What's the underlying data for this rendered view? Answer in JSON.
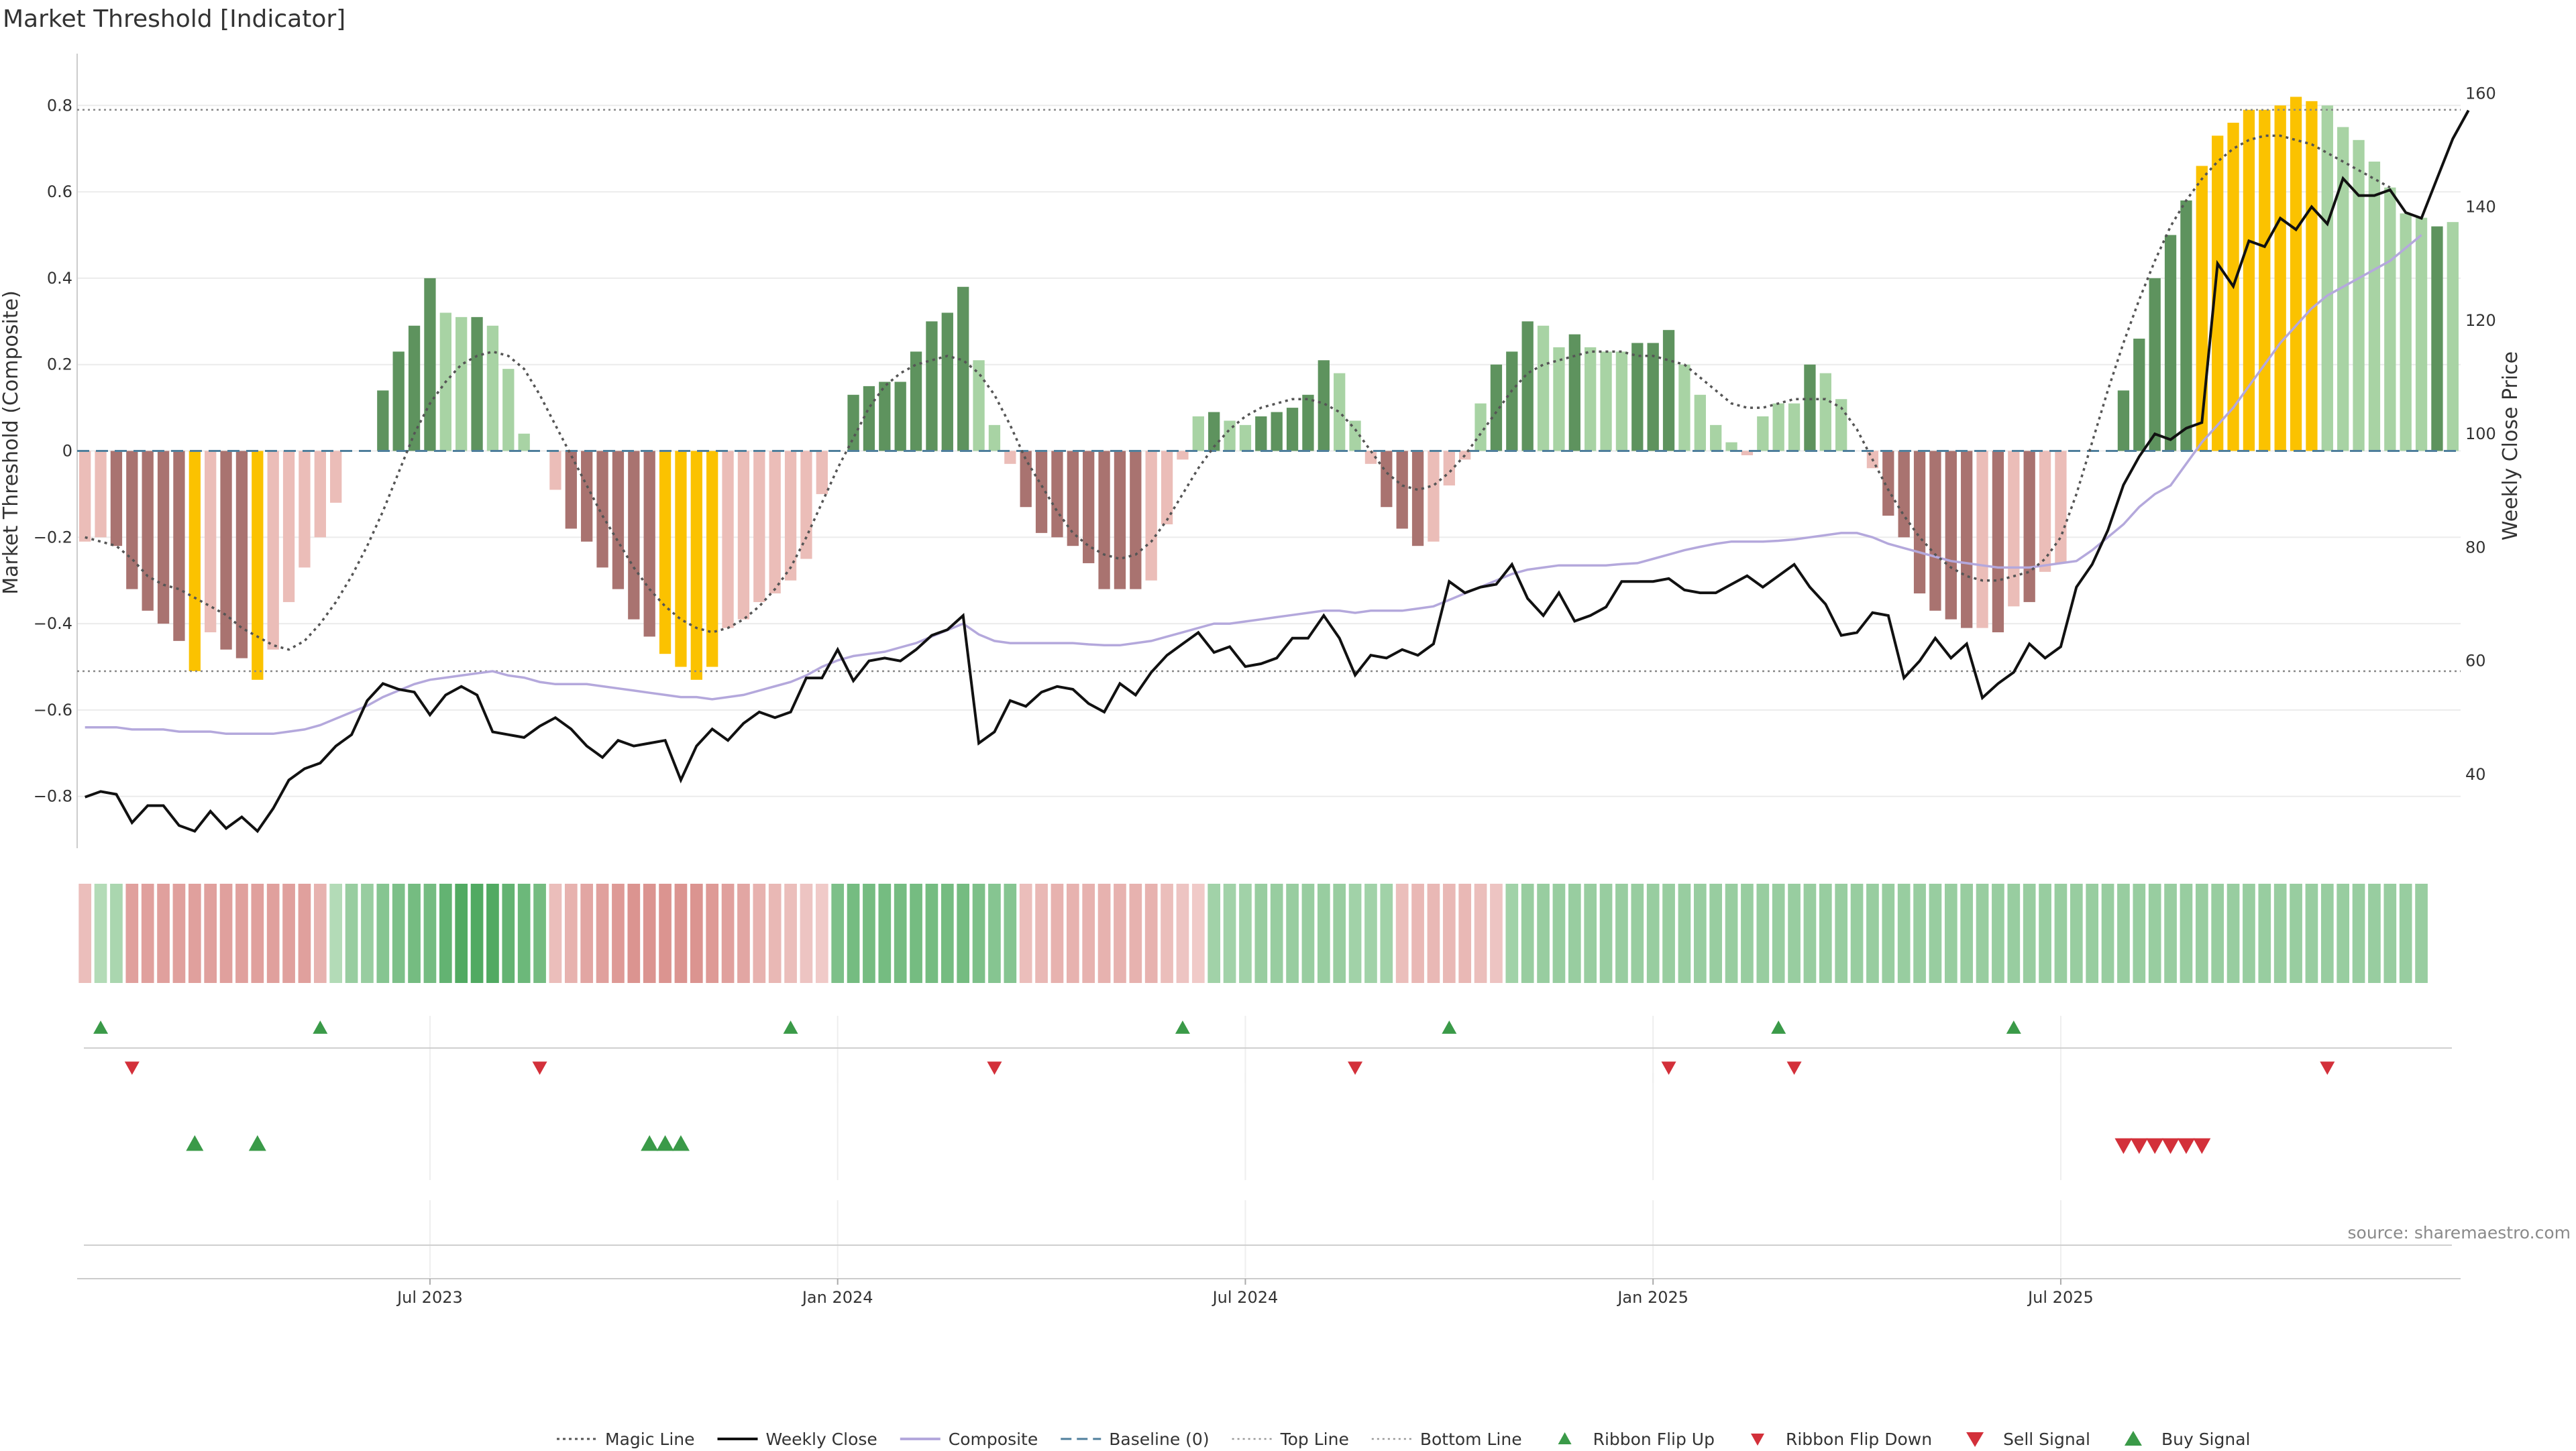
{
  "chart_data": {
    "type": "bar",
    "title": "Market Threshold [Indicator]",
    "ylabel": "Market Threshold (Composite)",
    "y2label": "Weekly Close Price",
    "source": "source: sharemaestro.com",
    "ylim": [
      -0.92,
      0.92
    ],
    "y2lim": [
      27,
      167
    ],
    "yticks": [
      -0.8,
      -0.6,
      -0.4,
      -0.2,
      0,
      0.2,
      0.4,
      0.6,
      0.8
    ],
    "ytick_labels": [
      "−0.8",
      "−0.6",
      "−0.4",
      "−0.2",
      "0",
      "0.2",
      "0.4",
      "0.6",
      "0.8"
    ],
    "y2ticks": [
      40,
      60,
      80,
      100,
      120,
      140,
      160
    ],
    "y2tick_labels": [
      "40",
      "60",
      "80",
      "100",
      "120",
      "140",
      "160"
    ],
    "xtick_labels": [
      "Jul 2023",
      "Jan 2024",
      "Jul 2024",
      "Jan 2025",
      "Jul 2025"
    ],
    "xtick_positions": [
      22.5,
      48.5,
      74.5,
      100.5,
      126.5
    ],
    "top_line": 0.79,
    "bottom_line": -0.51,
    "colors": {
      "strong_up": "#5e935e",
      "weak_up": "#a8d3a4",
      "strong_down": "#a97370",
      "weak_down": "#ebbdb8",
      "extreme": "#fbc200",
      "price_line": "#111111",
      "composite_line": "#b4a8dc",
      "magic_line": "#555555",
      "baseline": "#4f7f9c",
      "buy": "#3a9a48",
      "sell": "#d3303a"
    },
    "bars": [
      -0.21,
      -0.2,
      -0.22,
      -0.32,
      -0.37,
      -0.4,
      -0.44,
      -0.51,
      -0.42,
      -0.46,
      -0.48,
      -0.53,
      -0.46,
      -0.35,
      -0.27,
      -0.2,
      -0.12,
      0,
      0,
      0.14,
      0.23,
      0.29,
      0.4,
      0.32,
      0.31,
      0.31,
      0.29,
      0.19,
      0.04,
      0,
      -0.09,
      -0.18,
      -0.21,
      -0.27,
      -0.32,
      -0.39,
      -0.43,
      -0.47,
      -0.5,
      -0.53,
      -0.5,
      -0.41,
      -0.39,
      -0.35,
      -0.33,
      -0.3,
      -0.25,
      -0.1,
      0,
      0.13,
      0.15,
      0.16,
      0.16,
      0.23,
      0.3,
      0.32,
      0.38,
      0.21,
      0.06,
      -0.03,
      -0.13,
      -0.19,
      -0.2,
      -0.22,
      -0.26,
      -0.32,
      -0.32,
      -0.32,
      -0.3,
      -0.17,
      -0.02,
      0.08,
      0.09,
      0.07,
      0.06,
      0.08,
      0.09,
      0.1,
      0.13,
      0.21,
      0.18,
      0.07,
      -0.03,
      -0.13,
      -0.18,
      -0.22,
      -0.21,
      -0.08,
      -0.02,
      0.11,
      0.2,
      0.23,
      0.3,
      0.29,
      0.24,
      0.27,
      0.24,
      0.23,
      0.23,
      0.25,
      0.25,
      0.28,
      0.2,
      0.13,
      0.06,
      0.02,
      -0.01,
      0.08,
      0.11,
      0.11,
      0.2,
      0.18,
      0.12,
      0,
      -0.04,
      -0.15,
      -0.2,
      -0.33,
      -0.37,
      -0.39,
      -0.41,
      -0.41,
      -0.42,
      -0.36,
      -0.35,
      -0.28,
      -0.26,
      -0.26,
      -0.15,
      0,
      0.14,
      0.26,
      0.4,
      0.5,
      0.58,
      0.66,
      0.73,
      0.76,
      0.79,
      0.79,
      0.8,
      0.82,
      0.81,
      0.8,
      0.75,
      0.72,
      0.67,
      0.61,
      0.55,
      0.54,
      0.52,
      0.53
    ],
    "bar_tiers": [
      "w",
      "w",
      "s",
      "s",
      "s",
      "s",
      "s",
      "e",
      "w",
      "s",
      "s",
      "e",
      "w",
      "w",
      "w",
      "w",
      "w",
      "n",
      "n",
      "s",
      "s",
      "s",
      "s",
      "w",
      "w",
      "s",
      "w",
      "w",
      "w",
      "n",
      "w",
      "s",
      "s",
      "s",
      "s",
      "s",
      "s",
      "e",
      "e",
      "e",
      "e",
      "w",
      "w",
      "w",
      "w",
      "w",
      "w",
      "w",
      "n",
      "s",
      "s",
      "s",
      "s",
      "s",
      "s",
      "s",
      "s",
      "w",
      "w",
      "w",
      "s",
      "s",
      "s",
      "s",
      "s",
      "s",
      "s",
      "s",
      "w",
      "w",
      "w",
      "w",
      "s",
      "w",
      "w",
      "s",
      "s",
      "s",
      "s",
      "s",
      "w",
      "w",
      "w",
      "s",
      "s",
      "s",
      "w",
      "w",
      "w",
      "w",
      "s",
      "s",
      "s",
      "w",
      "w",
      "s",
      "w",
      "w",
      "w",
      "s",
      "s",
      "s",
      "w",
      "w",
      "w",
      "w",
      "w",
      "w",
      "w",
      "w",
      "s",
      "w",
      "w",
      "n",
      "w",
      "s",
      "s",
      "s",
      "s",
      "s",
      "s",
      "w",
      "s",
      "w",
      "s",
      "w",
      "w",
      "n",
      "n",
      "s",
      "s",
      "s",
      "s",
      "s",
      "s",
      "e",
      "e",
      "e",
      "e",
      "e",
      "e",
      "e",
      "e",
      "w",
      "w",
      "w",
      "w",
      "w",
      "w",
      "w",
      "s"
    ],
    "magic_line": [
      -0.2,
      -0.21,
      -0.22,
      -0.25,
      -0.29,
      -0.31,
      -0.32,
      -0.34,
      -0.36,
      -0.38,
      -0.41,
      -0.43,
      -0.45,
      -0.46,
      -0.44,
      -0.4,
      -0.35,
      -0.29,
      -0.22,
      -0.14,
      -0.05,
      0.04,
      0.11,
      0.16,
      0.2,
      0.22,
      0.23,
      0.22,
      0.19,
      0.13,
      0.06,
      -0.01,
      -0.08,
      -0.15,
      -0.21,
      -0.27,
      -0.32,
      -0.36,
      -0.39,
      -0.41,
      -0.42,
      -0.41,
      -0.39,
      -0.36,
      -0.32,
      -0.27,
      -0.2,
      -0.12,
      -0.04,
      0.03,
      0.1,
      0.15,
      0.18,
      0.2,
      0.21,
      0.22,
      0.21,
      0.18,
      0.13,
      0.06,
      -0.02,
      -0.08,
      -0.14,
      -0.19,
      -0.22,
      -0.24,
      -0.25,
      -0.24,
      -0.21,
      -0.16,
      -0.1,
      -0.04,
      0.01,
      0.05,
      0.08,
      0.1,
      0.11,
      0.12,
      0.12,
      0.11,
      0.09,
      0.05,
      0,
      -0.05,
      -0.08,
      -0.09,
      -0.08,
      -0.05,
      -0.01,
      0.04,
      0.09,
      0.14,
      0.18,
      0.2,
      0.21,
      0.22,
      0.23,
      0.23,
      0.23,
      0.22,
      0.22,
      0.21,
      0.2,
      0.17,
      0.14,
      0.11,
      0.1,
      0.1,
      0.11,
      0.12,
      0.12,
      0.12,
      0.1,
      0.05,
      -0.02,
      -0.09,
      -0.15,
      -0.2,
      -0.24,
      -0.27,
      -0.29,
      -0.3,
      -0.3,
      -0.29,
      -0.28,
      -0.25,
      -0.2,
      -0.1,
      0.02,
      0.14,
      0.25,
      0.35,
      0.44,
      0.52,
      0.58,
      0.63,
      0.67,
      0.7,
      0.72,
      0.73,
      0.73,
      0.72,
      0.71,
      0.69,
      0.67,
      0.65,
      0.63,
      0.61
    ],
    "composite": [
      -0.64,
      -0.64,
      -0.64,
      -0.645,
      -0.645,
      -0.645,
      -0.65,
      -0.65,
      -0.65,
      -0.655,
      -0.655,
      -0.655,
      -0.655,
      -0.65,
      -0.645,
      -0.635,
      -0.62,
      -0.605,
      -0.59,
      -0.57,
      -0.555,
      -0.54,
      -0.53,
      -0.525,
      -0.52,
      -0.515,
      -0.51,
      -0.52,
      -0.525,
      -0.535,
      -0.54,
      -0.54,
      -0.54,
      -0.545,
      -0.55,
      -0.555,
      -0.56,
      -0.565,
      -0.57,
      -0.57,
      -0.575,
      -0.57,
      -0.565,
      -0.555,
      -0.545,
      -0.535,
      -0.52,
      -0.5,
      -0.485,
      -0.475,
      -0.47,
      -0.465,
      -0.455,
      -0.445,
      -0.43,
      -0.415,
      -0.4,
      -0.425,
      -0.44,
      -0.445,
      -0.445,
      -0.445,
      -0.445,
      -0.445,
      -0.448,
      -0.45,
      -0.45,
      -0.445,
      -0.44,
      -0.43,
      -0.42,
      -0.41,
      -0.4,
      -0.4,
      -0.395,
      -0.39,
      -0.385,
      -0.38,
      -0.375,
      -0.37,
      -0.37,
      -0.375,
      -0.37,
      -0.37,
      -0.37,
      -0.365,
      -0.36,
      -0.345,
      -0.33,
      -0.315,
      -0.3,
      -0.285,
      -0.275,
      -0.27,
      -0.265,
      -0.265,
      -0.265,
      -0.265,
      -0.262,
      -0.26,
      -0.25,
      -0.24,
      -0.23,
      -0.222,
      -0.215,
      -0.21,
      -0.21,
      -0.21,
      -0.208,
      -0.205,
      -0.2,
      -0.195,
      -0.19,
      -0.19,
      -0.2,
      -0.215,
      -0.225,
      -0.235,
      -0.245,
      -0.255,
      -0.26,
      -0.265,
      -0.27,
      -0.27,
      -0.27,
      -0.265,
      -0.26,
      -0.255,
      -0.23,
      -0.2,
      -0.17,
      -0.13,
      -0.1,
      -0.08,
      -0.03,
      0.02,
      0.06,
      0.1,
      0.15,
      0.2,
      0.25,
      0.29,
      0.33,
      0.36,
      0.38,
      0.4,
      0.42,
      0.44,
      0.47,
      0.5
    ],
    "weekly_close": [
      36,
      37,
      36.5,
      31.5,
      34.5,
      34.5,
      31,
      30,
      33.5,
      30.5,
      32.5,
      30,
      34,
      39,
      41,
      42,
      45,
      47,
      53,
      56,
      55,
      54.5,
      50.5,
      54,
      55.5,
      54,
      47.5,
      47,
      46.5,
      48.5,
      50,
      48,
      45,
      43,
      46,
      45,
      45.5,
      46,
      39,
      45,
      48,
      46,
      49,
      51,
      50,
      51,
      57,
      57,
      62,
      56.5,
      60,
      60.5,
      60,
      62,
      64.5,
      65.5,
      68,
      45.5,
      47.5,
      53,
      52,
      54.5,
      55.5,
      55,
      52.5,
      51,
      56,
      54,
      58,
      61,
      63,
      65,
      61.5,
      62.5,
      59,
      59.5,
      60.5,
      64,
      64,
      68,
      64,
      57.5,
      61,
      60.5,
      62,
      61,
      63,
      74,
      72,
      73,
      73.5,
      77,
      71,
      68,
      72,
      67,
      68,
      69.5,
      74,
      74,
      74,
      74.5,
      72.5,
      72,
      72,
      73.5,
      75,
      73,
      75,
      77,
      73,
      70,
      64.5,
      65,
      68.5,
      68,
      57,
      60,
      64,
      60.5,
      63,
      53.5,
      56,
      58,
      63,
      60.5,
      62.5,
      73,
      77,
      83,
      91,
      96,
      100,
      99,
      101,
      102,
      130,
      126,
      134,
      133,
      138,
      136,
      140,
      137,
      145,
      142,
      142,
      143,
      139,
      138,
      145,
      152,
      157
    ],
    "ribbon": [
      -0.2,
      0.2,
      0.25,
      -0.45,
      -0.45,
      -0.45,
      -0.45,
      -0.45,
      -0.45,
      -0.45,
      -0.45,
      -0.45,
      -0.45,
      -0.45,
      -0.45,
      -0.3,
      0.2,
      0.35,
      0.35,
      0.45,
      0.5,
      0.55,
      0.55,
      0.65,
      0.75,
      0.75,
      0.75,
      0.65,
      0.6,
      0.55,
      -0.2,
      -0.3,
      -0.4,
      -0.45,
      -0.5,
      -0.55,
      -0.55,
      -0.55,
      -0.55,
      -0.55,
      -0.5,
      -0.45,
      -0.4,
      -0.3,
      -0.25,
      -0.2,
      -0.15,
      -0.1,
      0.5,
      0.55,
      0.55,
      0.55,
      0.55,
      0.55,
      0.55,
      0.55,
      0.55,
      0.5,
      0.45,
      0.45,
      -0.2,
      -0.25,
      -0.3,
      -0.3,
      -0.3,
      -0.3,
      -0.3,
      -0.3,
      -0.3,
      -0.2,
      -0.15,
      -0.1,
      0.3,
      0.3,
      0.3,
      0.35,
      0.35,
      0.35,
      0.35,
      0.35,
      0.35,
      0.3,
      0.3,
      0.3,
      -0.2,
      -0.25,
      -0.25,
      -0.25,
      -0.25,
      -0.2,
      -0.15,
      0.3,
      0.35,
      0.35,
      0.35,
      0.35,
      0.35,
      0.35,
      0.35,
      0.35,
      0.35,
      0.35,
      0.35,
      0.35,
      0.35,
      0.35,
      0.35,
      0.35,
      0.35,
      0.35,
      0.35,
      0.35,
      0.35,
      0.35,
      0.35,
      0.35,
      0.35,
      0.35,
      0.35,
      0.35,
      0.35,
      0.35,
      0.35,
      0.35,
      0.35,
      0.35,
      0.35,
      0.35,
      0.35,
      0.35,
      0.35,
      0.35,
      0.35,
      0.35,
      0.35,
      0.35,
      0.35,
      0.35,
      0.35,
      0.35,
      0.35,
      0.35,
      0.35,
      0.35,
      0.35,
      0.35,
      0.35,
      0.35,
      0.35,
      0.35
    ],
    "ribbon_flip_up_weeks": [
      1,
      15,
      45,
      70,
      87,
      108,
      123
    ],
    "ribbon_flip_down_weeks": [
      3,
      29,
      58,
      81,
      101,
      109,
      143
    ],
    "buy_signal_weeks": [
      7,
      11,
      36,
      37,
      38
    ],
    "sell_signal_weeks": [
      130,
      131,
      132,
      133,
      134,
      135
    ],
    "legend": [
      {
        "label": "Magic Line",
        "style": "dotted-line"
      },
      {
        "label": "Weekly Close",
        "style": "solid-line"
      },
      {
        "label": "Composite",
        "style": "composite-line"
      },
      {
        "label": "Baseline (0)",
        "style": "dashed-line"
      },
      {
        "label": "Top Line",
        "style": "thin-dotted-line"
      },
      {
        "label": "Bottom Line",
        "style": "thin-dotted-line"
      },
      {
        "label": "Ribbon Flip Up",
        "style": "triangle-up-small"
      },
      {
        "label": "Ribbon Flip Down",
        "style": "triangle-down-small"
      },
      {
        "label": "Sell Signal",
        "style": "triangle-down"
      },
      {
        "label": "Buy Signal",
        "style": "triangle-up"
      }
    ],
    "legend_position": "bottom-center"
  }
}
